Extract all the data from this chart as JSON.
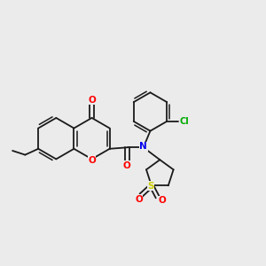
{
  "bg_color": "#ebebeb",
  "bond_color": "#1a1a1a",
  "colors": {
    "O": "#ff0000",
    "N": "#0000ee",
    "S": "#cccc00",
    "Cl": "#00aa00",
    "C": "#1a1a1a"
  }
}
